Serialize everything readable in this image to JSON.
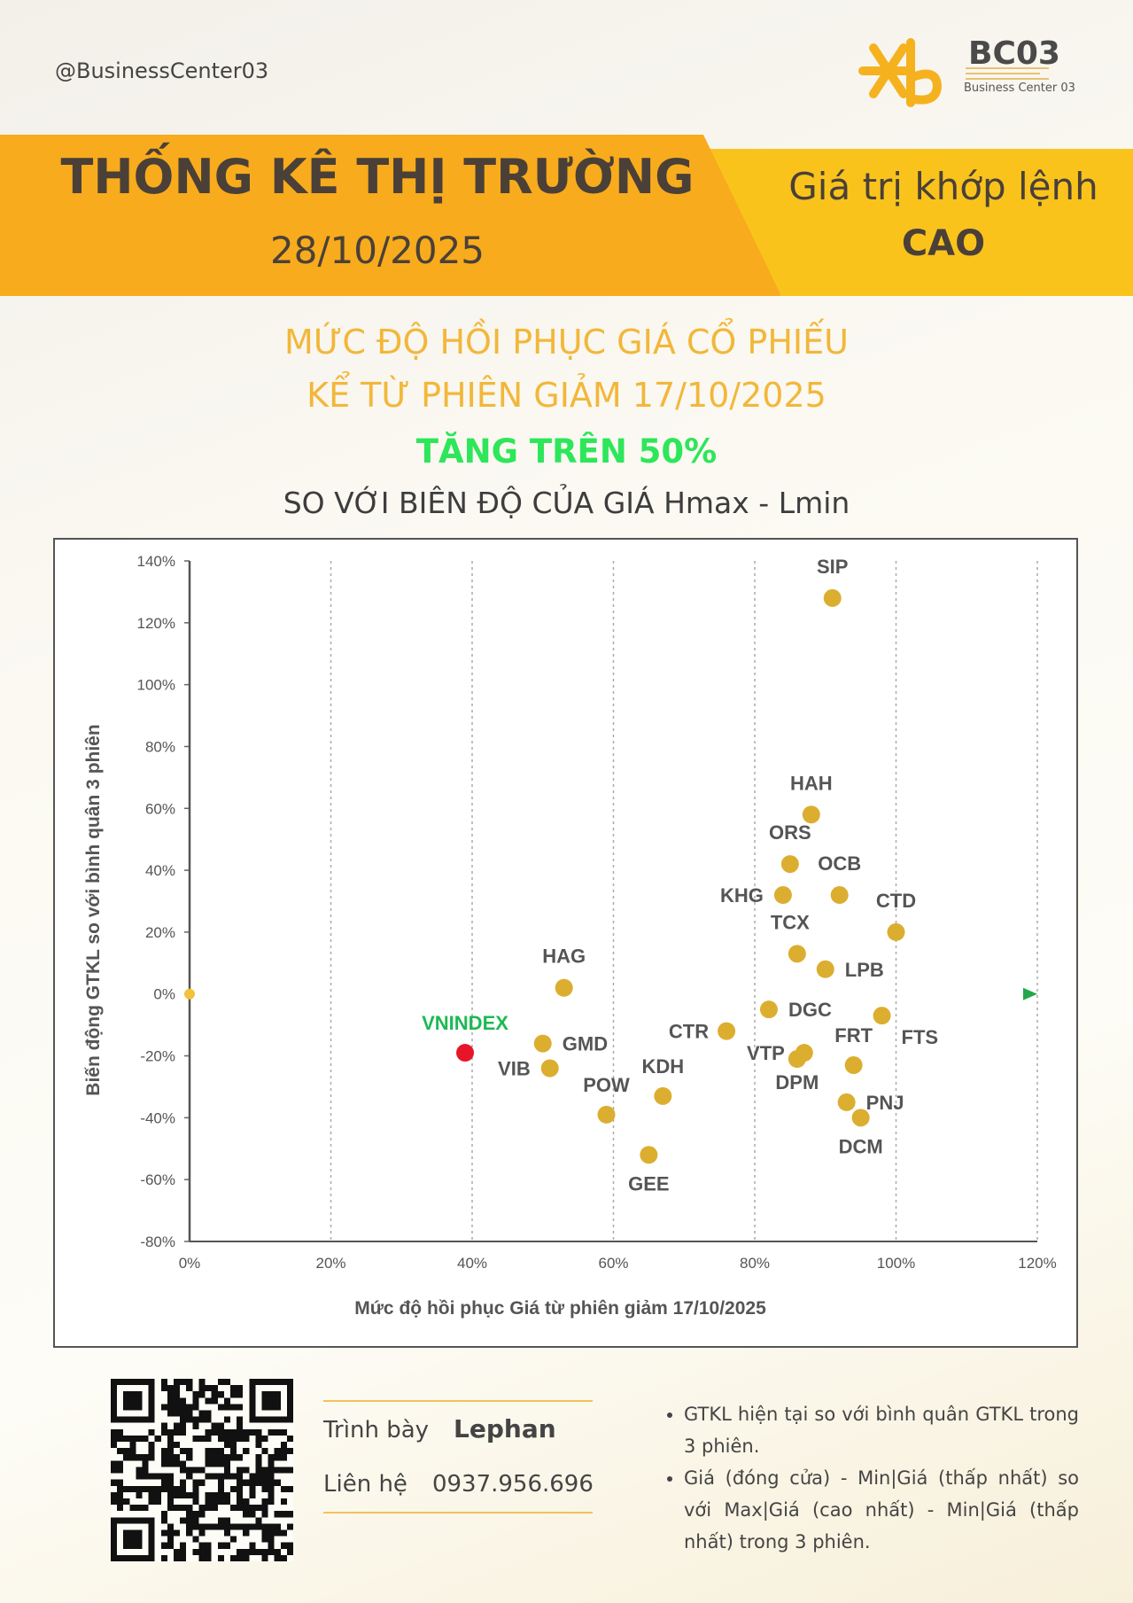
{
  "header": {
    "handle": "@BusinessCenter03",
    "logo_title": "BC03",
    "logo_sub": "Business Center 03",
    "banner_title": "THỐNG KÊ THỊ TRƯỜNG",
    "banner_date": "28/10/2025",
    "right_line1": "Giá trị khớp lệnh",
    "right_line2": "CAO"
  },
  "headline": {
    "line1": "MỨC ĐỘ HỒI PHỤC GIÁ CỔ PHIẾU",
    "line2": "KỂ TỪ PHIÊN GIẢM 17/10/2025",
    "line3": "TĂNG TRÊN 50%",
    "line4": "SO VỚI BIÊN ĐỘ CỦA GIÁ Hmax - Lmin"
  },
  "colors": {
    "orange": "#f8ab1c",
    "yellow": "#f9c31c",
    "headline_gold": "#f2b73a",
    "highlight_green": "#2ee65a",
    "point": "#dcae30",
    "vnindex_point": "#e8152a",
    "vnindex_label": "#1db954",
    "axis_start": "#f2c33a",
    "axis_end": "#22a84a"
  },
  "chart_data": {
    "type": "scatter",
    "xlabel": "Mức độ hồi phục Giá từ phiên giảm 17/10/2025",
    "ylabel": "Biến động GTKL so với bình quân 3 phiên",
    "xlim": [
      0,
      120
    ],
    "ylim": [
      -80,
      140
    ],
    "x_ticks": [
      "0%",
      "20%",
      "40%",
      "60%",
      "80%",
      "100%",
      "120%"
    ],
    "y_ticks": [
      "140%",
      "120%",
      "100%",
      "80%",
      "60%",
      "40%",
      "20%",
      "0%",
      "-20%",
      "-40%",
      "-60%",
      "-80%"
    ],
    "grid": "vertical dotted",
    "points": [
      {
        "label": "SIP",
        "x": 91,
        "y": 128
      },
      {
        "label": "HAH",
        "x": 88,
        "y": 58
      },
      {
        "label": "ORS",
        "x": 85,
        "y": 42
      },
      {
        "label": "OCB",
        "x": 92,
        "y": 32
      },
      {
        "label": "KHG",
        "x": 84,
        "y": 32
      },
      {
        "label": "CTD",
        "x": 100,
        "y": 20
      },
      {
        "label": "TCX",
        "x": 86,
        "y": 13
      },
      {
        "label": "LPB",
        "x": 90,
        "y": 8
      },
      {
        "label": "HAG",
        "x": 53,
        "y": 2
      },
      {
        "label": "DGC",
        "x": 82,
        "y": -5
      },
      {
        "label": "FTS",
        "x": 98,
        "y": -7
      },
      {
        "label": "CTR",
        "x": 76,
        "y": -12
      },
      {
        "label": "GMD",
        "x": 50,
        "y": -16
      },
      {
        "label": "VTP",
        "x": 87,
        "y": -19
      },
      {
        "label": "DPM",
        "x": 86,
        "y": -21
      },
      {
        "label": "VIB",
        "x": 51,
        "y": -24
      },
      {
        "label": "FRT",
        "x": 94,
        "y": -23
      },
      {
        "label": "KDH",
        "x": 67,
        "y": -33
      },
      {
        "label": "PNJ",
        "x": 93,
        "y": -35
      },
      {
        "label": "POW",
        "x": 59,
        "y": -39
      },
      {
        "label": "DCM",
        "x": 95,
        "y": -40
      },
      {
        "label": "GEE",
        "x": 65,
        "y": -52
      }
    ],
    "highlight": {
      "label": "VNINDEX",
      "x": 39,
      "y": -19
    }
  },
  "credit": {
    "presenter_label": "Trình bày",
    "presenter_name": "Lephan",
    "contact_label": "Liên hệ",
    "phone": "0937.956.696"
  },
  "notes": [
    "GTKL hiện tại so với bình quân GTKL trong 3 phiên.",
    "Giá (đóng cửa) - Min|Giá (thấp nhất) so với Max|Giá (cao nhất) - Min|Giá (thấp nhất) trong 3 phiên."
  ]
}
